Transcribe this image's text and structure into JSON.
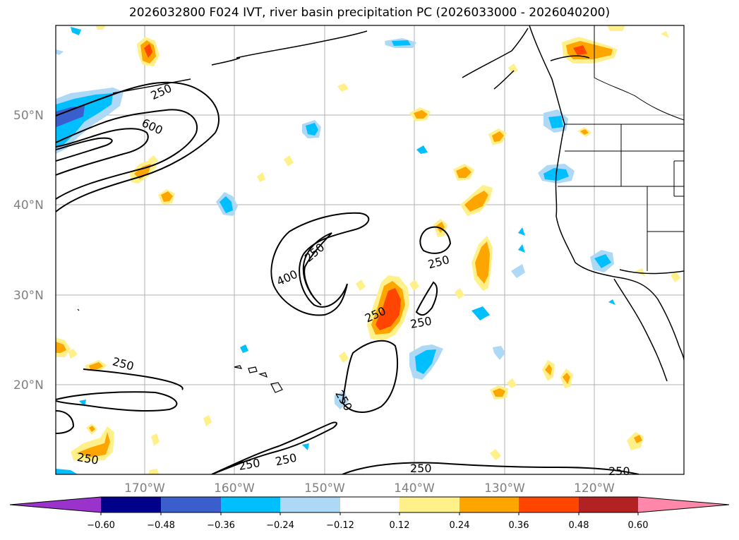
{
  "title": "2026032800 F024 IVT, river basin precipitation PC (2026033000 - 2026040200)",
  "latitude_labels": [
    "50°N",
    "40°N",
    "30°N",
    "20°N"
  ],
  "longitude_labels": [
    "170°W",
    "160°W",
    "150°W",
    "140°W",
    "130°W",
    "120°W"
  ],
  "contour_labels": [
    "250",
    "600",
    "250",
    "400",
    "250",
    "250",
    "250",
    "250",
    "250",
    "250",
    "250",
    "250",
    "250",
    "250"
  ],
  "colorbar": {
    "ticks": [
      "−0.60",
      "−0.48",
      "−0.36",
      "−0.24",
      "−0.12",
      "0.12",
      "0.24",
      "0.36",
      "0.48",
      "0.60"
    ],
    "colors": [
      "#9a33cc",
      "#00008b",
      "#3a5fcd",
      "#00bfff",
      "#add8f6",
      "#ffffff",
      "#fff08a",
      "#ffa500",
      "#ff4500",
      "#b22222",
      "#ff88aa"
    ]
  },
  "legend_colors": {
    "neg_strong": "#3a5fcd",
    "neg_mid": "#00bfff",
    "neg_weak": "#add8f6",
    "pos_weak": "#fff08a",
    "pos_mid": "#ffa500",
    "pos_strong": "#ff4500"
  }
}
